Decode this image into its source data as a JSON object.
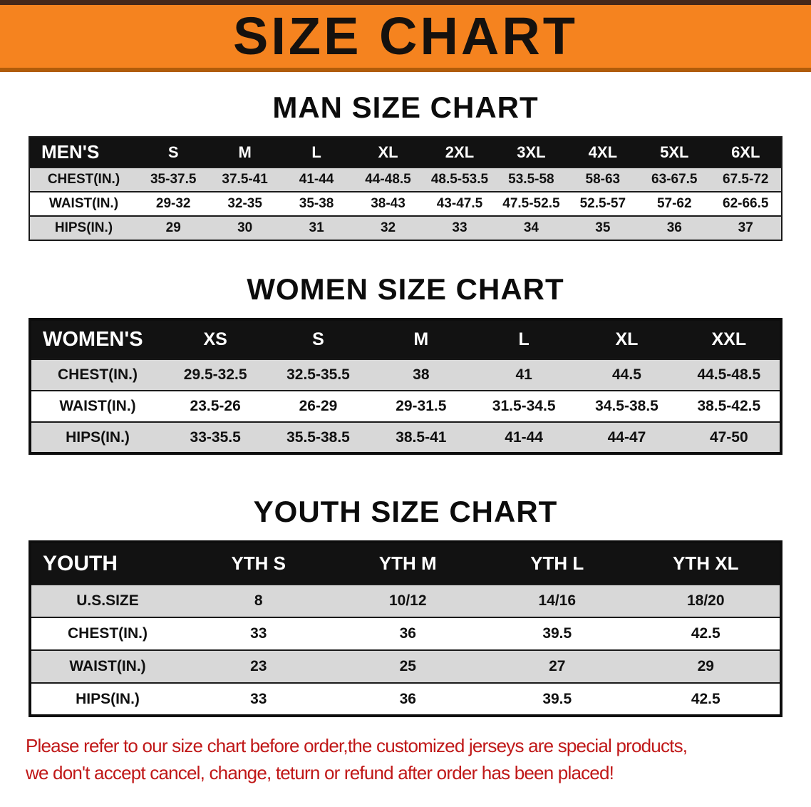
{
  "banner": {
    "title": "SIZE CHART"
  },
  "colors": {
    "banner_bg": "#F5831F",
    "banner_text": "#15110E",
    "table_header_bg": "#121212",
    "table_header_text": "#FFFFFF",
    "row_gray": "#D8D8D8",
    "footer_red": "#C01818"
  },
  "men": {
    "heading": "MAN SIZE CHART",
    "table": {
      "label": "MEN'S",
      "columns": [
        "S",
        "M",
        "L",
        "XL",
        "2XL",
        "3XL",
        "4XL",
        "5XL",
        "6XL"
      ],
      "rows": [
        {
          "label": "CHEST(IN.)",
          "values": [
            "35-37.5",
            "37.5-41",
            "41-44",
            "44-48.5",
            "48.5-53.5",
            "53.5-58",
            "58-63",
            "63-67.5",
            "67.5-72"
          ]
        },
        {
          "label": "WAIST(IN.)",
          "values": [
            "29-32",
            "32-35",
            "35-38",
            "38-43",
            "43-47.5",
            "47.5-52.5",
            "52.5-57",
            "57-62",
            "62-66.5"
          ]
        },
        {
          "label": "HIPS(IN.)",
          "values": [
            "29",
            "30",
            "31",
            "32",
            "33",
            "34",
            "35",
            "36",
            "37"
          ]
        }
      ]
    }
  },
  "women": {
    "heading": "WOMEN SIZE CHART",
    "table": {
      "label": "WOMEN'S",
      "columns": [
        "XS",
        "S",
        "M",
        "L",
        "XL",
        "XXL"
      ],
      "rows": [
        {
          "label": "CHEST(IN.)",
          "values": [
            "29.5-32.5",
            "32.5-35.5",
            "38",
            "41",
            "44.5",
            "44.5-48.5"
          ]
        },
        {
          "label": "WAIST(IN.)",
          "values": [
            "23.5-26",
            "26-29",
            "29-31.5",
            "31.5-34.5",
            "34.5-38.5",
            "38.5-42.5"
          ]
        },
        {
          "label": "HIPS(IN.)",
          "values": [
            "33-35.5",
            "35.5-38.5",
            "38.5-41",
            "41-44",
            "44-47",
            "47-50"
          ]
        }
      ]
    }
  },
  "youth": {
    "heading": "YOUTH SIZE CHART",
    "table": {
      "label": "YOUTH",
      "columns": [
        "YTH S",
        "YTH M",
        "YTH L",
        "YTH XL"
      ],
      "rows": [
        {
          "label": "U.S.SIZE",
          "values": [
            "8",
            "10/12",
            "14/16",
            "18/20"
          ]
        },
        {
          "label": "CHEST(IN.)",
          "values": [
            "33",
            "36",
            "39.5",
            "42.5"
          ]
        },
        {
          "label": "WAIST(IN.)",
          "values": [
            "23",
            "25",
            "27",
            "29"
          ]
        },
        {
          "label": "HIPS(IN.)",
          "values": [
            "33",
            "36",
            "39.5",
            "42.5"
          ]
        }
      ]
    }
  },
  "footer": {
    "line1": "Please refer to our size chart before order,the customized jerseys are special products,",
    "line2": "we don't accept cancel, change, teturn or refund after order has been placed!"
  }
}
